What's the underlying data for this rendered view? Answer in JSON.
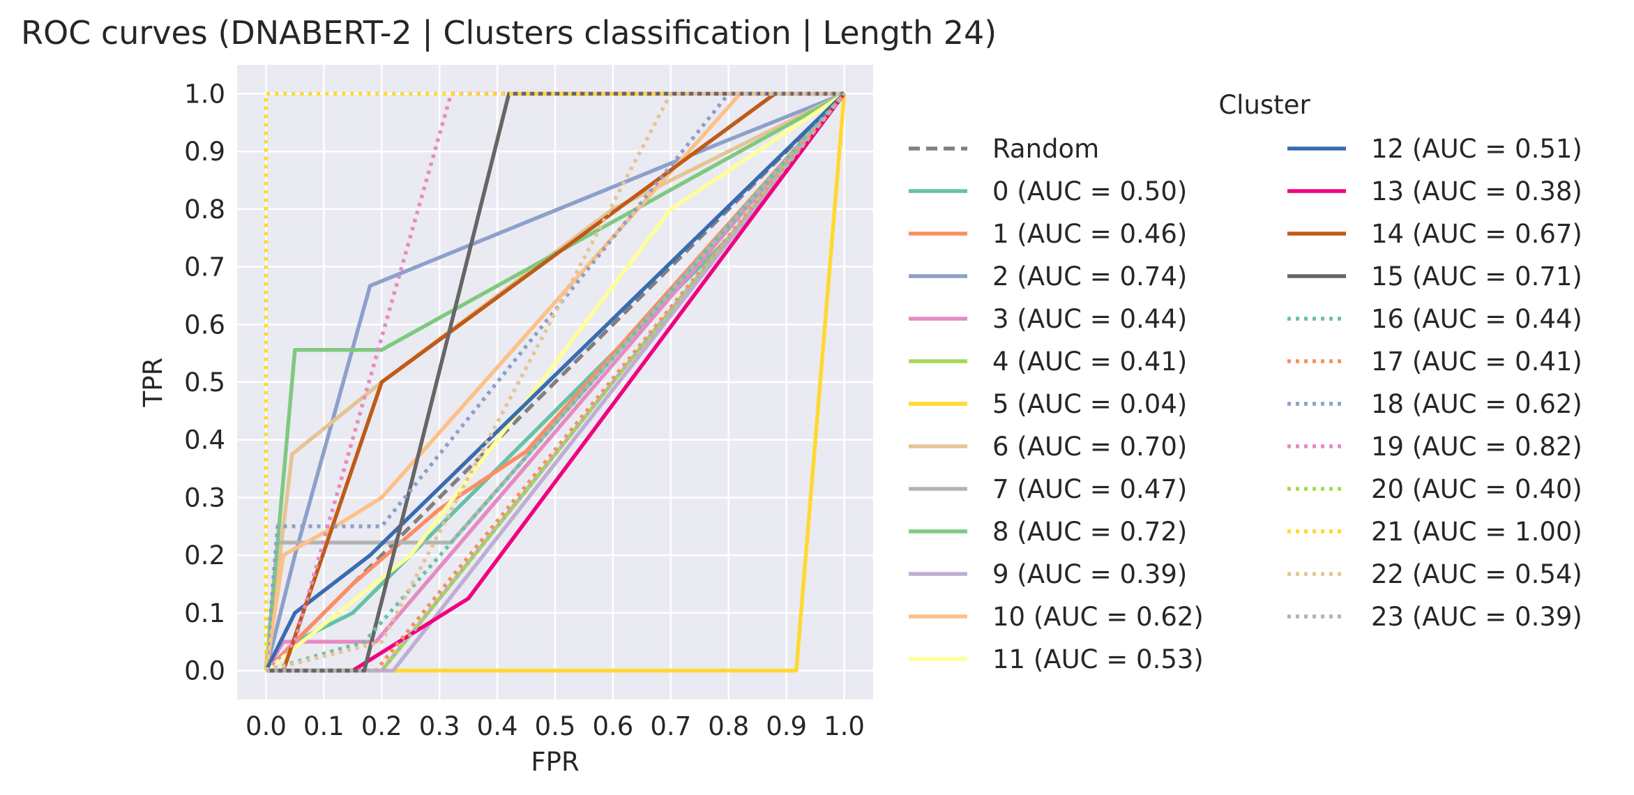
{
  "chart_data": {
    "type": "line",
    "title": "ROC curves (DNABERT-2 | Clusters classification | Length 24)",
    "xlabel": "FPR",
    "ylabel": "TPR",
    "xlim": [
      -0.05,
      1.05
    ],
    "ylim": [
      -0.05,
      1.05
    ],
    "x_ticks": [
      0.0,
      0.1,
      0.2,
      0.3,
      0.4,
      0.5,
      0.6,
      0.7,
      0.8,
      0.9,
      1.0
    ],
    "x_tick_labels": [
      "0.0",
      "0.1",
      "0.2",
      "0.3",
      "0.4",
      "0.5",
      "0.6",
      "0.7",
      "0.8",
      "0.9",
      "1.0"
    ],
    "y_ticks": [
      0.0,
      0.1,
      0.2,
      0.3,
      0.4,
      0.5,
      0.6,
      0.7,
      0.8,
      0.9,
      1.0
    ],
    "y_tick_labels": [
      "0.0",
      "0.1",
      "0.2",
      "0.3",
      "0.4",
      "0.5",
      "0.6",
      "0.7",
      "0.8",
      "0.9",
      "1.0"
    ],
    "grid": true,
    "background": "#eaeaf2",
    "legend": {
      "title": "Cluster",
      "placement": "outside-right",
      "columns": 2
    },
    "series": [
      {
        "name": "Random",
        "color": "#808080",
        "style": "dashed",
        "x": [
          0,
          1
        ],
        "y": [
          0,
          1
        ]
      },
      {
        "name": "0 (AUC = 0.50)",
        "color": "#66c2a5",
        "style": "solid",
        "x": [
          0,
          0.05,
          0.15,
          0.25,
          0.35,
          0.45,
          0.55,
          0.65,
          0.75,
          0.85,
          1.0
        ],
        "y": [
          0,
          0.05,
          0.1,
          0.2,
          0.3,
          0.4,
          0.5,
          0.6,
          0.7,
          0.8,
          1.0
        ]
      },
      {
        "name": "1 (AUC = 0.46)",
        "color": "#fc8d62",
        "style": "solid",
        "x": [
          0,
          0.15,
          0.3,
          0.45,
          1.0
        ],
        "y": [
          0,
          0.15,
          0.28,
          0.38,
          1.0
        ]
      },
      {
        "name": "2 (AUC = 0.74)",
        "color": "#8da0cb",
        "style": "solid",
        "x": [
          0,
          0.05,
          0.18,
          0.8,
          1.0
        ],
        "y": [
          0,
          0.2,
          0.667,
          0.92,
          1.0
        ]
      },
      {
        "name": "3 (AUC = 0.44)",
        "color": "#e78ac3",
        "style": "solid",
        "x": [
          0,
          0.03,
          0.19,
          1.0
        ],
        "y": [
          0,
          0.05,
          0.05,
          1.0
        ]
      },
      {
        "name": "4 (AUC = 0.41)",
        "color": "#a6d854",
        "style": "solid",
        "x": [
          0,
          0.2,
          1.0
        ],
        "y": [
          0,
          0,
          1.0
        ]
      },
      {
        "name": "5 (AUC = 0.04)",
        "color": "#ffd92f",
        "style": "solid",
        "x": [
          0,
          0.917,
          1.0
        ],
        "y": [
          0,
          0,
          1.0
        ]
      },
      {
        "name": "6 (AUC = 0.70)",
        "color": "#e5c494",
        "style": "solid",
        "x": [
          0,
          0.045,
          0.2,
          0.6,
          1.0
        ],
        "y": [
          0,
          0.375,
          0.5,
          0.8,
          1.0
        ]
      },
      {
        "name": "7 (AUC = 0.47)",
        "color": "#b3b3b3",
        "style": "solid",
        "x": [
          0,
          0.02,
          0.32,
          1.0
        ],
        "y": [
          0,
          0.222,
          0.222,
          1.0
        ]
      },
      {
        "name": "8 (AUC = 0.72)",
        "color": "#7fc97f",
        "style": "solid",
        "x": [
          0,
          0.05,
          0.2,
          1.0
        ],
        "y": [
          0,
          0.556,
          0.556,
          1.0
        ]
      },
      {
        "name": "9 (AUC = 0.39)",
        "color": "#beaed4",
        "style": "solid",
        "x": [
          0,
          0.22,
          1.0
        ],
        "y": [
          0,
          0,
          1.0
        ]
      },
      {
        "name": "10 (AUC = 0.62)",
        "color": "#fdc086",
        "style": "solid",
        "x": [
          0,
          0.03,
          0.12,
          0.2,
          0.82,
          1.0
        ],
        "y": [
          0,
          0.2,
          0.25,
          0.3,
          1.0,
          1.0
        ]
      },
      {
        "name": "11 (AUC = 0.53)",
        "color": "#ffff99",
        "style": "solid",
        "x": [
          0,
          0.25,
          0.7,
          1.0
        ],
        "y": [
          0,
          0.2,
          0.8,
          1.0
        ]
      },
      {
        "name": "12 (AUC = 0.51)",
        "color": "#386cb0",
        "style": "solid",
        "x": [
          0,
          0.05,
          0.18,
          1.0
        ],
        "y": [
          0,
          0.1,
          0.2,
          1.0
        ]
      },
      {
        "name": "13 (AUC = 0.38)",
        "color": "#f0027f",
        "style": "solid",
        "x": [
          0,
          0.15,
          0.35,
          1.0
        ],
        "y": [
          0,
          0,
          0.125,
          1.0
        ]
      },
      {
        "name": "14 (AUC = 0.67)",
        "color": "#bf5b17",
        "style": "solid",
        "x": [
          0,
          0.03,
          0.2,
          0.88,
          1.0
        ],
        "y": [
          0,
          0,
          0.5,
          1.0,
          1.0
        ]
      },
      {
        "name": "15 (AUC = 0.71)",
        "color": "#666666",
        "style": "solid",
        "x": [
          0,
          0.17,
          0.42,
          1.0
        ],
        "y": [
          0,
          0,
          1.0,
          1.0
        ]
      },
      {
        "name": "16 (AUC = 0.44)",
        "color": "#66c2a5",
        "style": "dotted",
        "x": [
          0,
          0.17,
          1.0
        ],
        "y": [
          0,
          0.05,
          1.0
        ]
      },
      {
        "name": "17 (AUC = 0.41)",
        "color": "#fc8d62",
        "style": "dotted",
        "x": [
          0,
          0.19,
          1.0
        ],
        "y": [
          0,
          0,
          1.0
        ]
      },
      {
        "name": "18 (AUC = 0.62)",
        "color": "#8da0cb",
        "style": "dotted",
        "x": [
          0,
          0.02,
          0.2,
          0.8,
          1.0
        ],
        "y": [
          0,
          0.25,
          0.25,
          1.0,
          1.0
        ]
      },
      {
        "name": "19 (AUC = 0.82)",
        "color": "#e78ac3",
        "style": "dotted",
        "x": [
          0,
          0.05,
          0.32,
          1.0
        ],
        "y": [
          0,
          0.05,
          1.0,
          1.0
        ]
      },
      {
        "name": "20 (AUC = 0.40)",
        "color": "#a6d854",
        "style": "dotted",
        "x": [
          0,
          0.2,
          1.0
        ],
        "y": [
          0,
          0,
          1.0
        ]
      },
      {
        "name": "21 (AUC = 1.00)",
        "color": "#ffd92f",
        "style": "dotted",
        "x": [
          0,
          0.0,
          1.0
        ],
        "y": [
          0,
          1.0,
          1.0
        ]
      },
      {
        "name": "22 (AUC = 0.54)",
        "color": "#e5c494",
        "style": "dotted",
        "x": [
          0,
          0.2,
          0.7,
          1.0
        ],
        "y": [
          0,
          0.05,
          1.0,
          1.0
        ]
      },
      {
        "name": "23 (AUC = 0.39)",
        "color": "#b3b3b3",
        "style": "dotted",
        "x": [
          0,
          0.2,
          1.0
        ],
        "y": [
          0,
          0,
          1.0
        ]
      }
    ]
  }
}
